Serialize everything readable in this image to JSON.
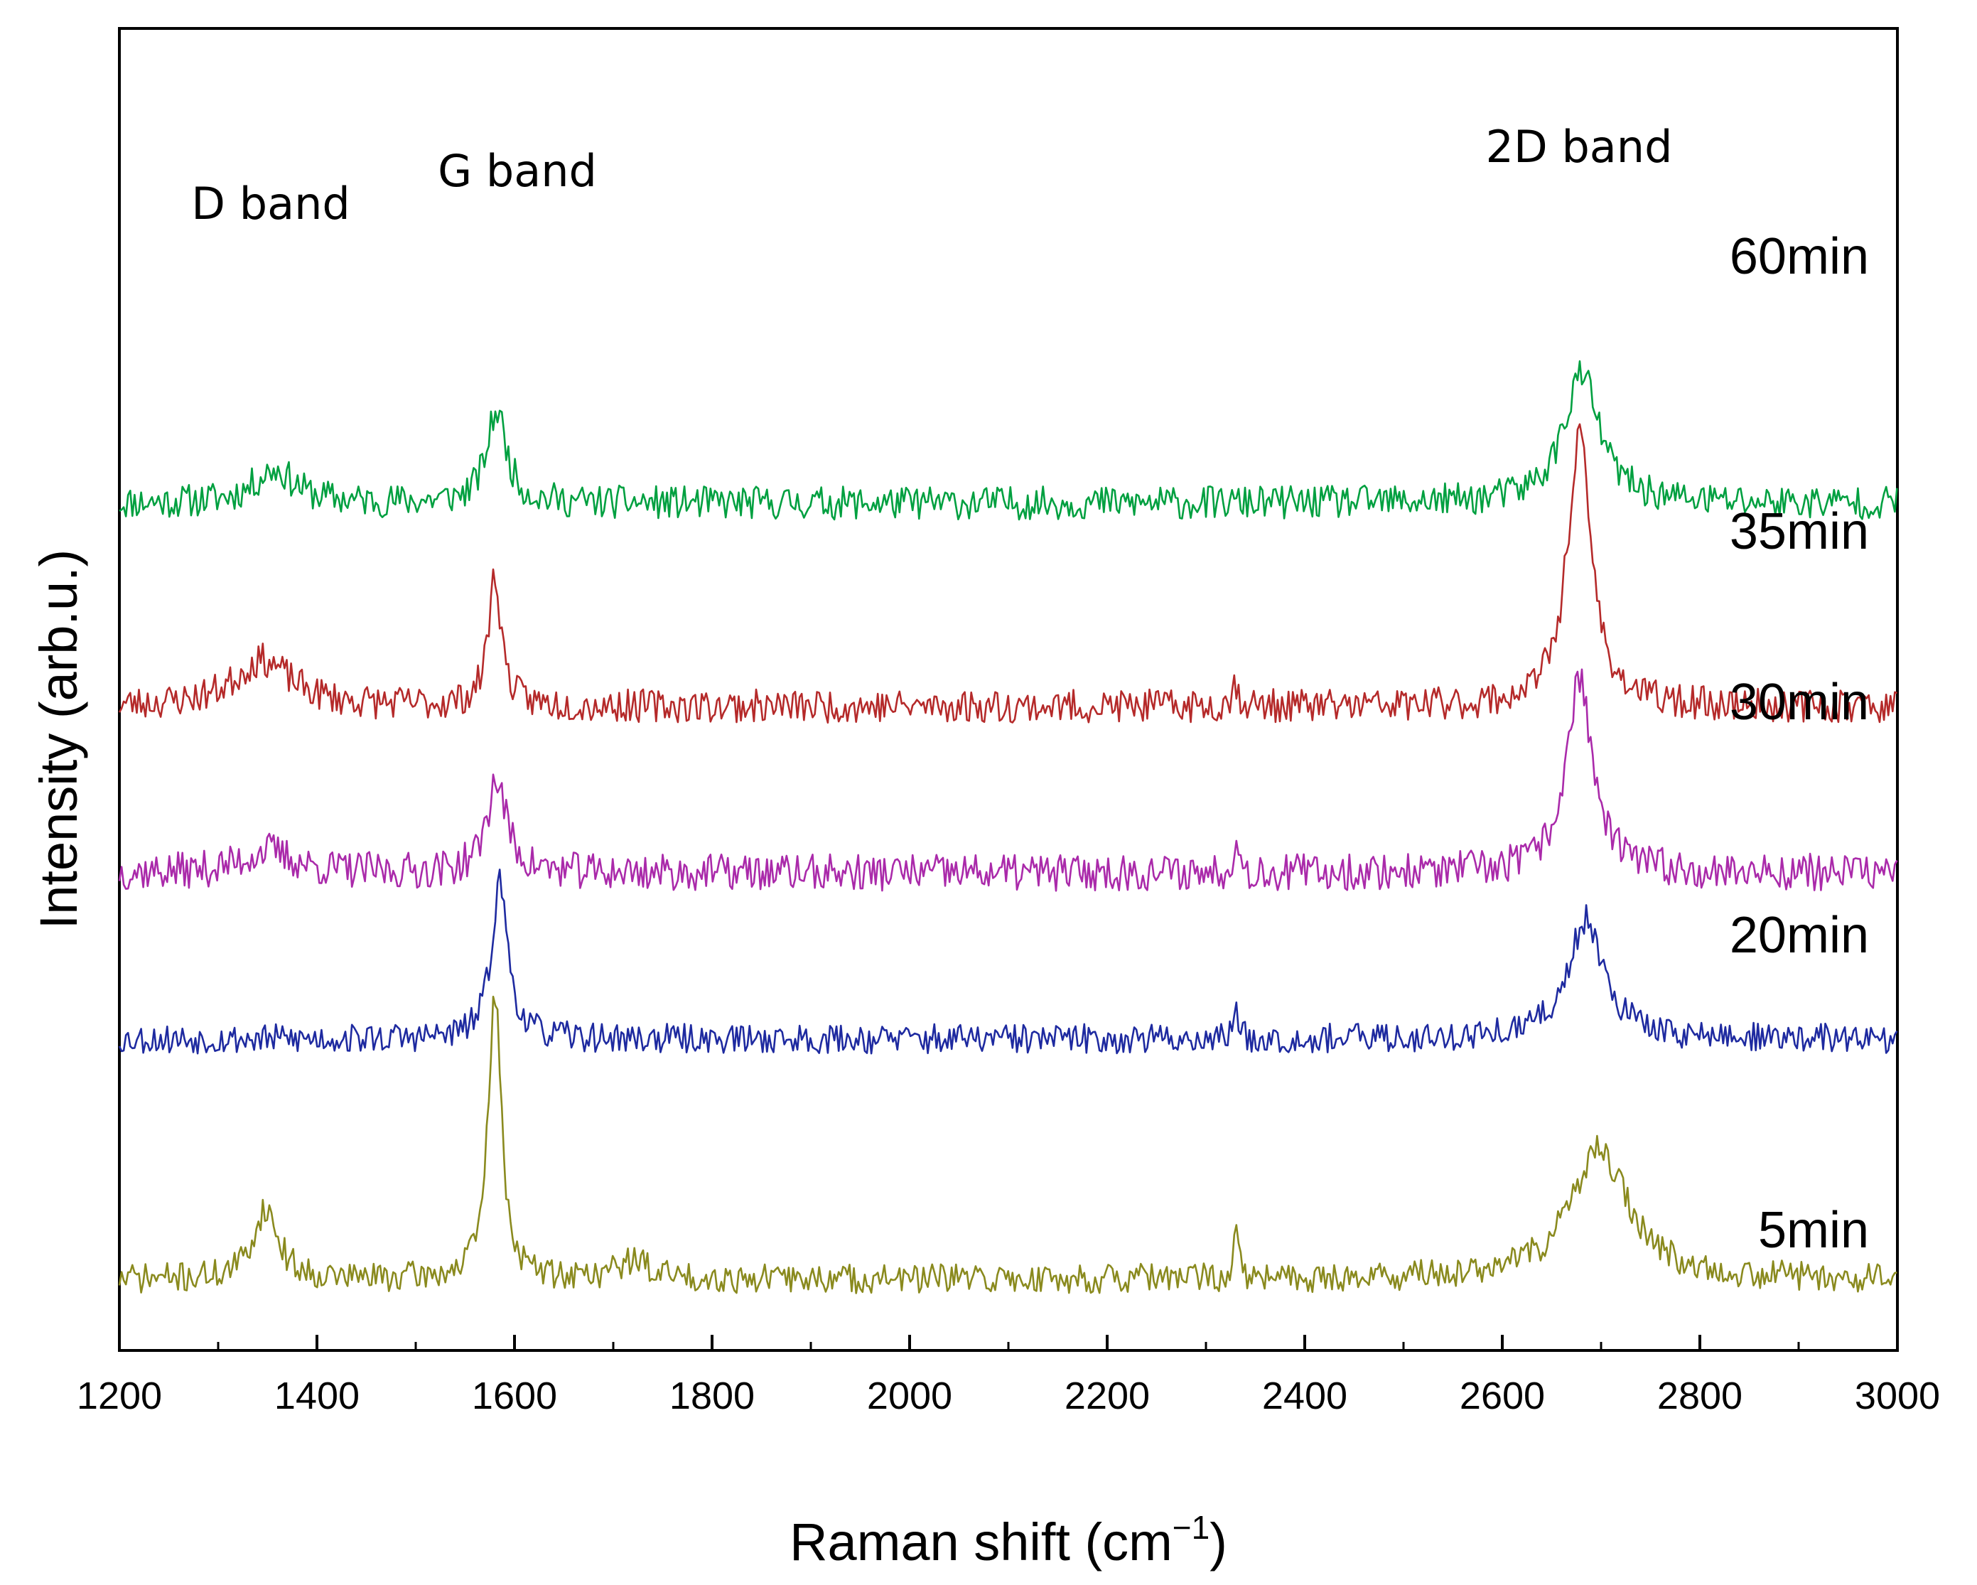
{
  "chart_data": {
    "type": "line",
    "title": "",
    "xlabel": "Raman shift (cm",
    "xlabel_sup": "−1",
    "xlabel_close": ")",
    "ylabel": "Intensity (arb.u.)",
    "xlim": [
      1200,
      3000
    ],
    "x_ticks": [
      1200,
      1400,
      1600,
      1800,
      2000,
      2200,
      2400,
      2600,
      2800,
      3000
    ],
    "y_ticks_shown": false,
    "annotations": [
      {
        "text": "D band",
        "x": 1357
      },
      {
        "text": "G band",
        "x": 1582
      },
      {
        "text": "2D band",
        "x": 2680
      }
    ],
    "series": [
      {
        "name": "60min",
        "color": "#00a040",
        "offset": 4.2,
        "noise": 0.09,
        "seed": 11,
        "peaks": [
          {
            "center": 1357,
            "height": 0.18,
            "width": 25
          },
          {
            "center": 1582,
            "height": 0.5,
            "width": 12
          },
          {
            "center": 2680,
            "height": 0.7,
            "width": 22
          }
        ]
      },
      {
        "name": "35min",
        "color": "#b52a2a",
        "offset": 3.1,
        "noise": 0.09,
        "seed": 23,
        "peaks": [
          {
            "center": 1345,
            "height": 0.25,
            "width": 35
          },
          {
            "center": 1580,
            "height": 0.7,
            "width": 8
          },
          {
            "center": 2330,
            "height": 0.12,
            "width": 4
          },
          {
            "center": 2678,
            "height": 1.45,
            "width": 15
          }
        ]
      },
      {
        "name": "30min",
        "color": "#aa2aaa",
        "offset": 2.2,
        "noise": 0.1,
        "seed": 37,
        "peaks": [
          {
            "center": 1350,
            "height": 0.12,
            "width": 30
          },
          {
            "center": 1582,
            "height": 0.5,
            "width": 12
          },
          {
            "center": 2330,
            "height": 0.2,
            "width": 3
          },
          {
            "center": 2678,
            "height": 1.05,
            "width": 16
          }
        ]
      },
      {
        "name": "20min",
        "color": "#1e2aa0",
        "offset": 1.3,
        "noise": 0.08,
        "seed": 53,
        "peaks": [
          {
            "center": 1585,
            "height": 0.85,
            "width": 10
          },
          {
            "center": 2330,
            "height": 0.18,
            "width": 3
          },
          {
            "center": 2685,
            "height": 0.65,
            "width": 22
          }
        ]
      },
      {
        "name": "5min",
        "color": "#8a8a1e",
        "offset": 0.0,
        "noise": 0.08,
        "seed": 71,
        "peaks": [
          {
            "center": 1348,
            "height": 0.38,
            "width": 15
          },
          {
            "center": 1580,
            "height": 1.55,
            "width": 8
          },
          {
            "center": 1720,
            "height": 0.1,
            "width": 20
          },
          {
            "center": 2330,
            "height": 0.25,
            "width": 3
          },
          {
            "center": 2698,
            "height": 0.7,
            "width": 35
          }
        ]
      }
    ]
  }
}
